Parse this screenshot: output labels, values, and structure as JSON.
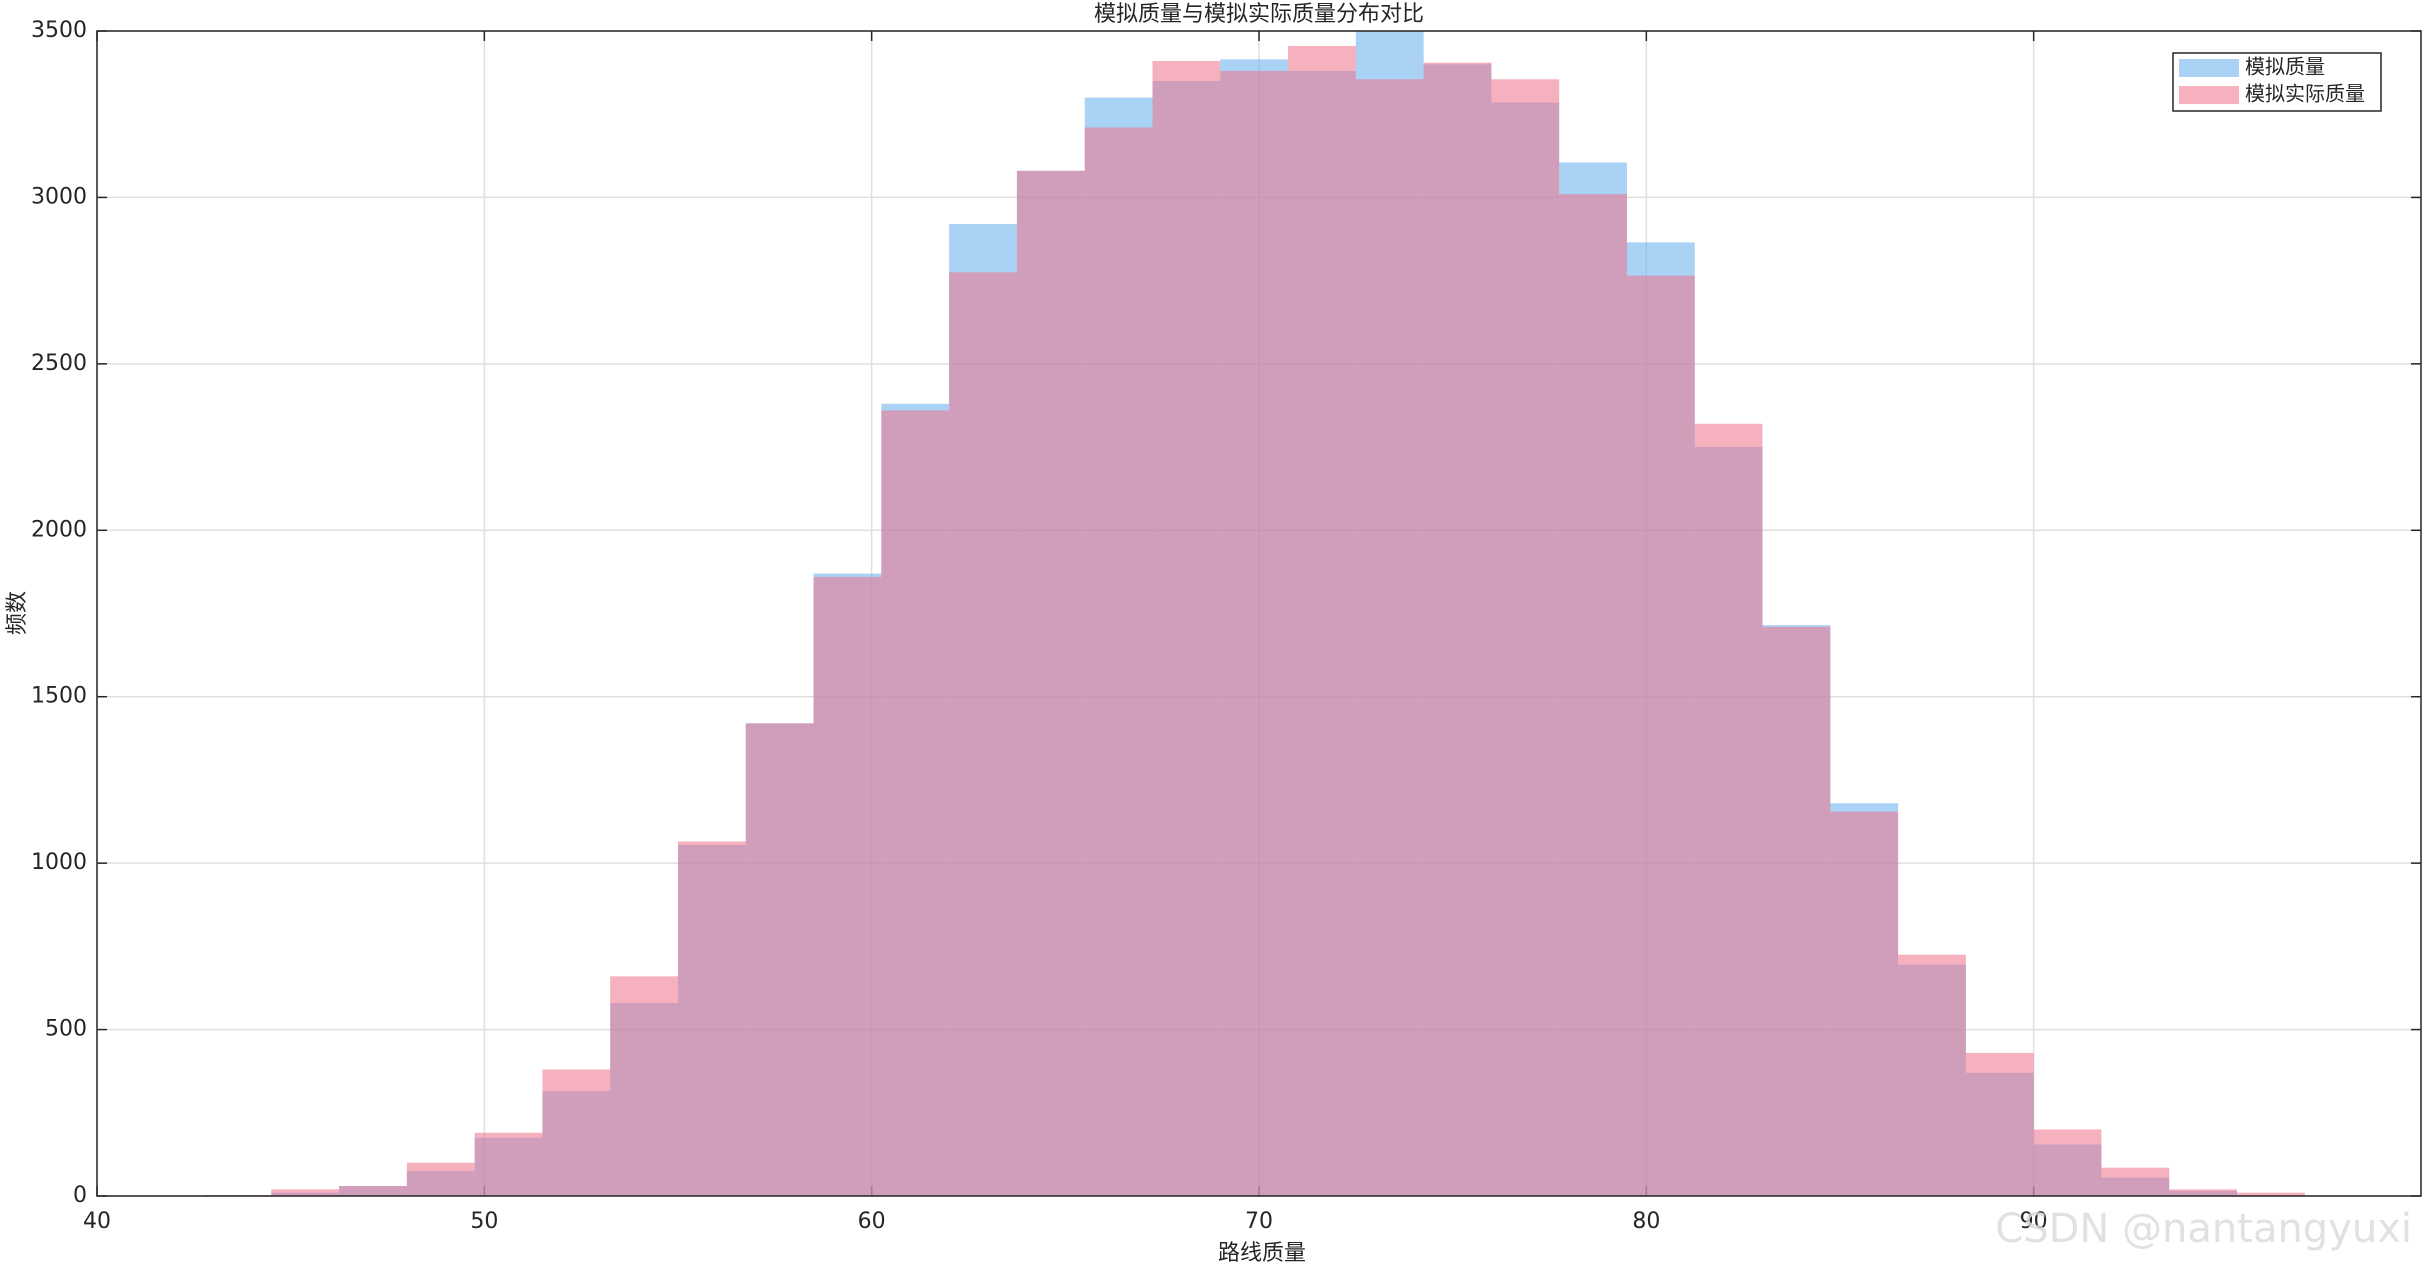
{
  "chart_data": {
    "type": "histogram",
    "title": "模拟质量与模拟实际质量分布对比",
    "xlabel": "路线质量",
    "ylabel": "频数",
    "watermark": "CSDN @nantangyuxi",
    "bins": [
      42.75,
      44.5,
      46.25,
      48,
      49.75,
      51.5,
      53.25,
      55,
      56.75,
      58.5,
      60.25,
      62,
      63.75,
      65.5,
      67.25,
      69,
      70.75,
      72.5,
      74.25,
      76,
      77.75,
      79.5,
      81.25,
      83,
      84.75,
      86.5,
      88.25,
      90,
      91.75,
      93.5,
      95.25,
      97
    ],
    "series": [
      {
        "name": "模拟质量",
        "color": "#71b4ee",
        "opacity": 0.6,
        "values": [
          2,
          10,
          30,
          75,
          175,
          315,
          580,
          1055,
          1420,
          1870,
          2380,
          2920,
          3080,
          3300,
          3350,
          3415,
          3380,
          3530,
          3400,
          3285,
          3105,
          2865,
          2250,
          1715,
          1180,
          695,
          370,
          155,
          55,
          15,
          0
        ]
      },
      {
        "name": "模拟实际质量",
        "color": "#ee7189",
        "opacity": 0.55,
        "values": [
          3,
          20,
          30,
          100,
          190,
          380,
          660,
          1065,
          1420,
          1860,
          2360,
          2775,
          3080,
          3210,
          3410,
          3380,
          3455,
          3355,
          3405,
          3355,
          3010,
          2765,
          2320,
          1710,
          1155,
          725,
          430,
          200,
          85,
          20,
          10
        ]
      }
    ],
    "xlim": [
      40,
      100
    ],
    "xticks": [
      40,
      50,
      60,
      70,
      80,
      90
    ],
    "ylim": [
      0,
      3500
    ],
    "yticks": [
      0,
      500,
      1000,
      1500,
      2000,
      2500,
      3000,
      3500
    ],
    "grid": true,
    "legend": "upper right"
  }
}
